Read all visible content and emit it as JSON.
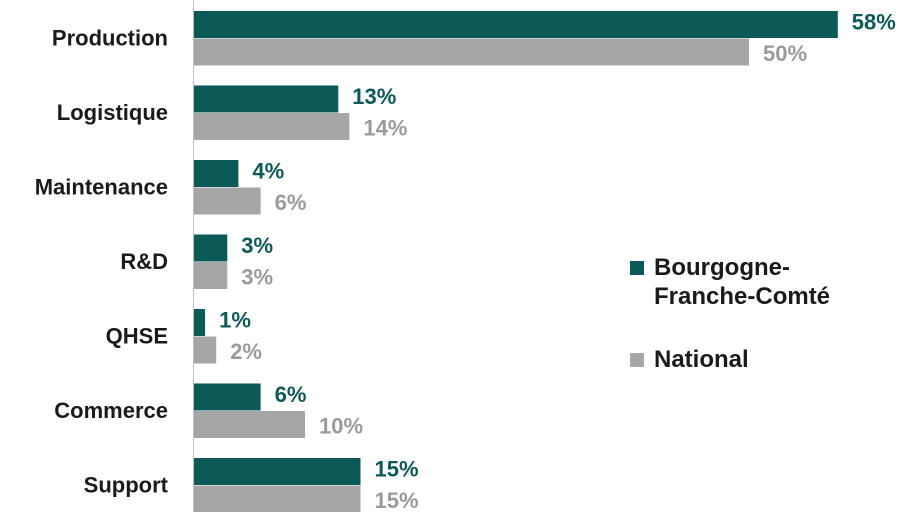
{
  "chart_data": {
    "type": "bar",
    "orientation": "horizontal",
    "categories": [
      "Production",
      "Logistique",
      "Maintenance",
      "R&D",
      "QHSE",
      "Commerce",
      "Support"
    ],
    "series": [
      {
        "name": "Bourgogne-Franche-Comté",
        "color": "#0b5a58",
        "values": [
          58,
          13,
          4,
          3,
          1,
          6,
          15
        ],
        "value_labels": [
          "58%",
          "13%",
          "4%",
          "3%",
          "1%",
          "6%",
          "15%"
        ]
      },
      {
        "name": "National",
        "color": "#a6a6a6",
        "values": [
          50,
          14,
          6,
          3,
          2,
          10,
          15
        ],
        "value_labels": [
          "50%",
          "14%",
          "6%",
          "3%",
          "2%",
          "10%",
          "15%"
        ]
      }
    ],
    "legend": "right"
  }
}
